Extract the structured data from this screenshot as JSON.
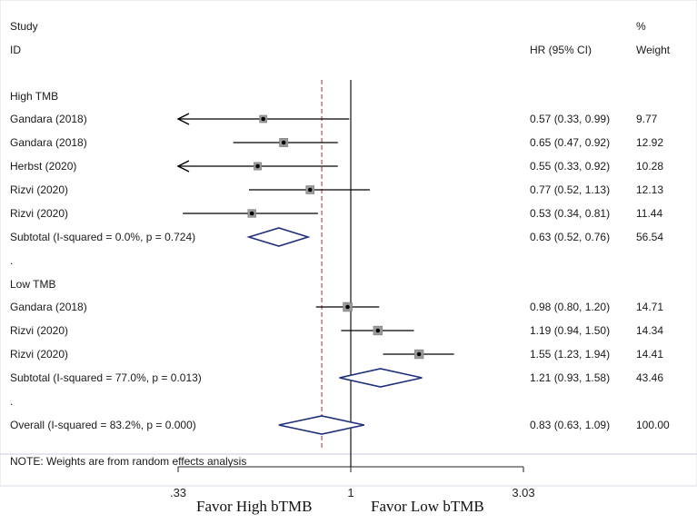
{
  "header": {
    "study_line1": "Study",
    "study_line2": "ID",
    "hr_label": "HR (95% CI)",
    "weight_line1": "%",
    "weight_line2": "Weight"
  },
  "groups": [
    {
      "label": "High TMB",
      "studies": [
        {
          "name": "Gandara (2018)",
          "hr": 0.57,
          "lo": 0.33,
          "hi": 0.99,
          "text": "0.57 (0.33, 0.99)",
          "weight": "9.77",
          "clipped_low": true
        },
        {
          "name": "Gandara (2018)",
          "hr": 0.65,
          "lo": 0.47,
          "hi": 0.92,
          "text": "0.65 (0.47, 0.92)",
          "weight": "12.92",
          "clipped_low": false
        },
        {
          "name": "Herbst (2020)",
          "hr": 0.55,
          "lo": 0.33,
          "hi": 0.92,
          "text": "0.55 (0.33, 0.92)",
          "weight": "10.28",
          "clipped_low": true
        },
        {
          "name": "Rizvi (2020)",
          "hr": 0.77,
          "lo": 0.52,
          "hi": 1.13,
          "text": "0.77 (0.52, 1.13)",
          "weight": "12.13",
          "clipped_low": false
        },
        {
          "name": "Rizvi (2020)",
          "hr": 0.53,
          "lo": 0.34,
          "hi": 0.81,
          "text": "0.53 (0.34, 0.81)",
          "weight": "11.44",
          "clipped_low": false
        }
      ],
      "subtotal": {
        "label": "Subtotal  (I-squared = 0.0%, p = 0.724)",
        "hr": 0.63,
        "lo": 0.52,
        "hi": 0.76,
        "text": "0.63 (0.52, 0.76)",
        "weight": "56.54"
      }
    },
    {
      "label": "Low TMB",
      "studies": [
        {
          "name": "Gandara (2018)",
          "hr": 0.98,
          "lo": 0.8,
          "hi": 1.2,
          "text": "0.98 (0.80, 1.20)",
          "weight": "14.71",
          "clipped_low": false
        },
        {
          "name": "Rizvi (2020)",
          "hr": 1.19,
          "lo": 0.94,
          "hi": 1.5,
          "text": "1.19 (0.94, 1.50)",
          "weight": "14.34",
          "clipped_low": false
        },
        {
          "name": "Rizvi (2020)",
          "hr": 1.55,
          "lo": 1.23,
          "hi": 1.94,
          "text": "1.55 (1.23, 1.94)",
          "weight": "14.41",
          "clipped_low": false
        }
      ],
      "subtotal": {
        "label": "Subtotal  (I-squared = 77.0%, p = 0.013)",
        "hr": 1.21,
        "lo": 0.93,
        "hi": 1.58,
        "text": "1.21 (0.93, 1.58)",
        "weight": "43.46"
      }
    }
  ],
  "overall": {
    "label": "Overall  (I-squared = 83.2%, p = 0.000)",
    "hr": 0.83,
    "lo": 0.63,
    "hi": 1.09,
    "text": "0.83 (0.63, 1.09)",
    "weight": "100.00"
  },
  "separator_dot": ".",
  "note": "NOTE: Weights are from random effects analysis",
  "axis": {
    "scale": "log",
    "xlim": [
      0.33,
      3.03
    ],
    "ticks": [
      {
        "value": 0.33,
        "label": ".33"
      },
      {
        "value": 1,
        "label": "1"
      },
      {
        "value": 3.03,
        "label": "3.03"
      }
    ],
    "null_value": 1,
    "overall_line_value": 0.83
  },
  "favor_left": "Favor High bTMB",
  "favor_right": "Favor Low bTMB",
  "chart_data": {
    "type": "forest",
    "title": "",
    "xlabel": "HR (95% CI)",
    "x_scale": "log",
    "xlim": [
      0.33,
      3.03
    ],
    "null_line": 1,
    "pooled_line": 0.83,
    "series": [
      {
        "name": "High TMB",
        "studies": [
          "Gandara (2018)",
          "Gandara (2018)",
          "Herbst (2020)",
          "Rizvi (2020)",
          "Rizvi (2020)"
        ],
        "hr": [
          0.57,
          0.65,
          0.55,
          0.77,
          0.53
        ],
        "lower": [
          0.33,
          0.47,
          0.33,
          0.52,
          0.34
        ],
        "upper": [
          0.99,
          0.92,
          0.92,
          1.13,
          0.81
        ],
        "weight": [
          9.77,
          12.92,
          10.28,
          12.13,
          11.44
        ],
        "subtotal": {
          "hr": 0.63,
          "lower": 0.52,
          "upper": 0.76,
          "weight": 56.54,
          "i_squared": "0.0%",
          "p": 0.724
        }
      },
      {
        "name": "Low TMB",
        "studies": [
          "Gandara (2018)",
          "Rizvi (2020)",
          "Rizvi (2020)"
        ],
        "hr": [
          0.98,
          1.19,
          1.55
        ],
        "lower": [
          0.8,
          0.94,
          1.23
        ],
        "upper": [
          1.2,
          1.5,
          1.94
        ],
        "weight": [
          14.71,
          14.34,
          14.41
        ],
        "subtotal": {
          "hr": 1.21,
          "lower": 0.93,
          "upper": 1.58,
          "weight": 43.46,
          "i_squared": "77.0%",
          "p": 0.013
        }
      }
    ],
    "overall": {
      "hr": 0.83,
      "lower": 0.63,
      "upper": 1.09,
      "weight": 100.0,
      "i_squared": "83.2%",
      "p": 0.0
    }
  }
}
